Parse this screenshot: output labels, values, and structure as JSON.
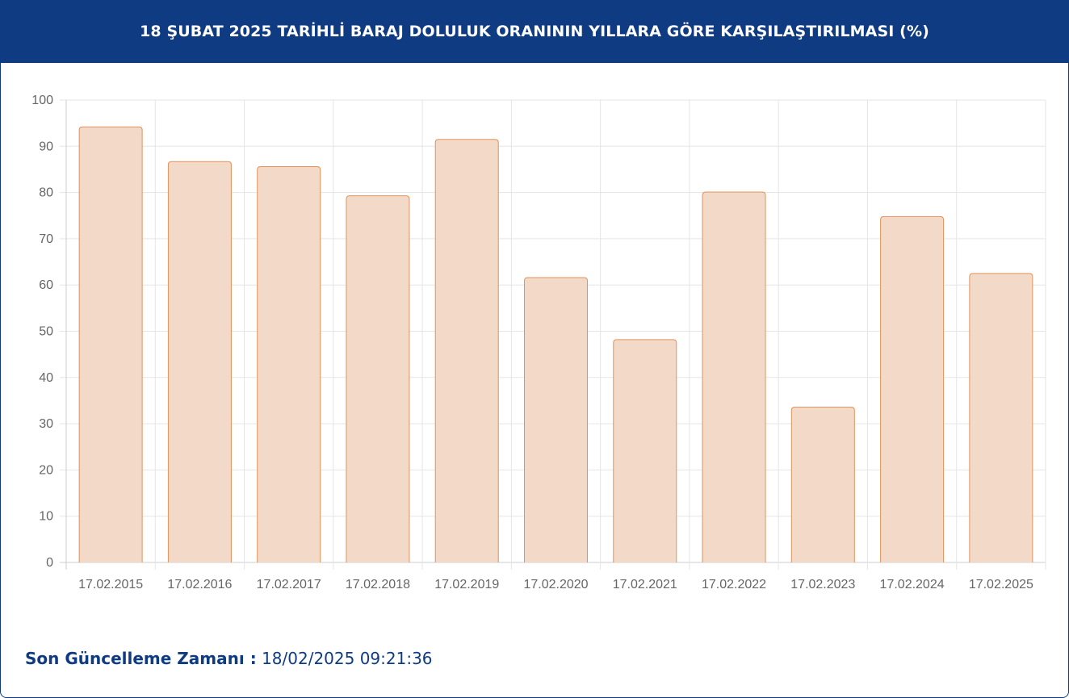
{
  "header": {
    "title": "18 ŞUBAT 2025 TARİHLİ BARAJ DOLULUK ORANININ YILLARA GÖRE KARŞILAŞTIRILMASI (%)"
  },
  "footer": {
    "label": "Son Güncelleme Zamanı :",
    "value": "18/02/2025 09:21:36"
  },
  "colors": {
    "header_bg": "#0f3b82",
    "bar_fill": "#f2d9c8",
    "bar_stroke": "#e0935c",
    "grid": "#e5e5e5",
    "tick_text": "#666666"
  },
  "chart_data": {
    "type": "bar",
    "title": "18 ŞUBAT 2025 TARİHLİ BARAJ DOLULUK ORANININ YILLARA GÖRE KARŞILAŞTIRILMASI (%)",
    "xlabel": "",
    "ylabel": "",
    "categories": [
      "17.02.2015",
      "17.02.2016",
      "17.02.2017",
      "17.02.2018",
      "17.02.2019",
      "17.02.2020",
      "17.02.2021",
      "17.02.2022",
      "17.02.2023",
      "17.02.2024",
      "17.02.2025"
    ],
    "values": [
      94.2,
      86.7,
      85.6,
      79.3,
      91.5,
      61.6,
      48.2,
      80.1,
      33.6,
      74.8,
      62.5
    ],
    "ylim": [
      0,
      100
    ],
    "yticks": [
      0,
      10,
      20,
      30,
      40,
      50,
      60,
      70,
      80,
      90,
      100
    ],
    "grid": true,
    "legend": false
  }
}
